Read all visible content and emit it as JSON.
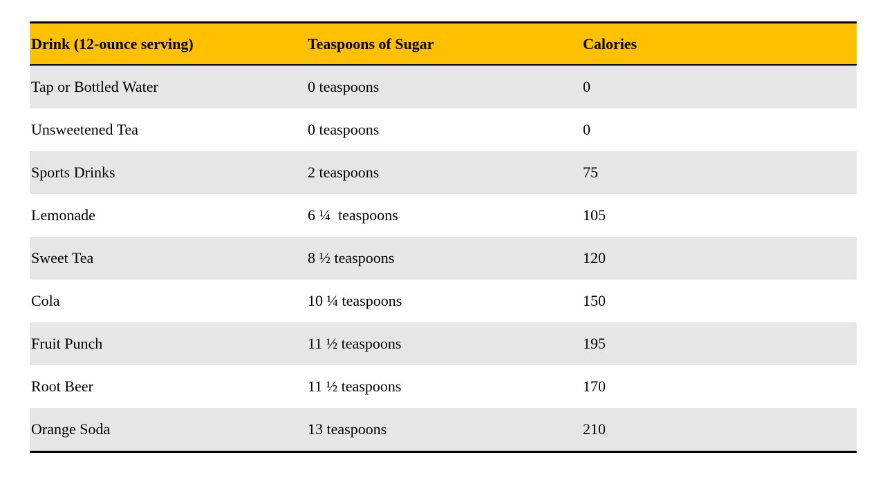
{
  "colors": {
    "header_bg": "#ffc000",
    "shaded_row_bg": "#e7e6e6",
    "plain_row_bg": "#ffffff",
    "rule": "#000000"
  },
  "table": {
    "headers": {
      "drink": "Drink (12-ounce serving)",
      "sugar": "Teaspoons of Sugar",
      "calories": "Calories"
    },
    "rows": [
      {
        "drink": "Tap or Bottled Water",
        "sugar": "0 teaspoons",
        "calories": "0"
      },
      {
        "drink": "Unsweetened Tea",
        "sugar": "0 teaspoons",
        "calories": "0"
      },
      {
        "drink": "Sports Drinks",
        "sugar": "2 teaspoons",
        "calories": "75"
      },
      {
        "drink": "Lemonade",
        "sugar": "6 ¼  teaspoons",
        "calories": "105"
      },
      {
        "drink": "Sweet Tea",
        "sugar": "8 ½ teaspoons",
        "calories": "120"
      },
      {
        "drink": "Cola",
        "sugar": "10 ¼ teaspoons",
        "calories": "150"
      },
      {
        "drink": "Fruit Punch",
        "sugar": "11 ½ teaspoons",
        "calories": "195"
      },
      {
        "drink": "Root Beer",
        "sugar": "11 ½ teaspoons",
        "calories": "170"
      },
      {
        "drink": "Orange Soda",
        "sugar": "13 teaspoons",
        "calories": "210"
      }
    ]
  }
}
